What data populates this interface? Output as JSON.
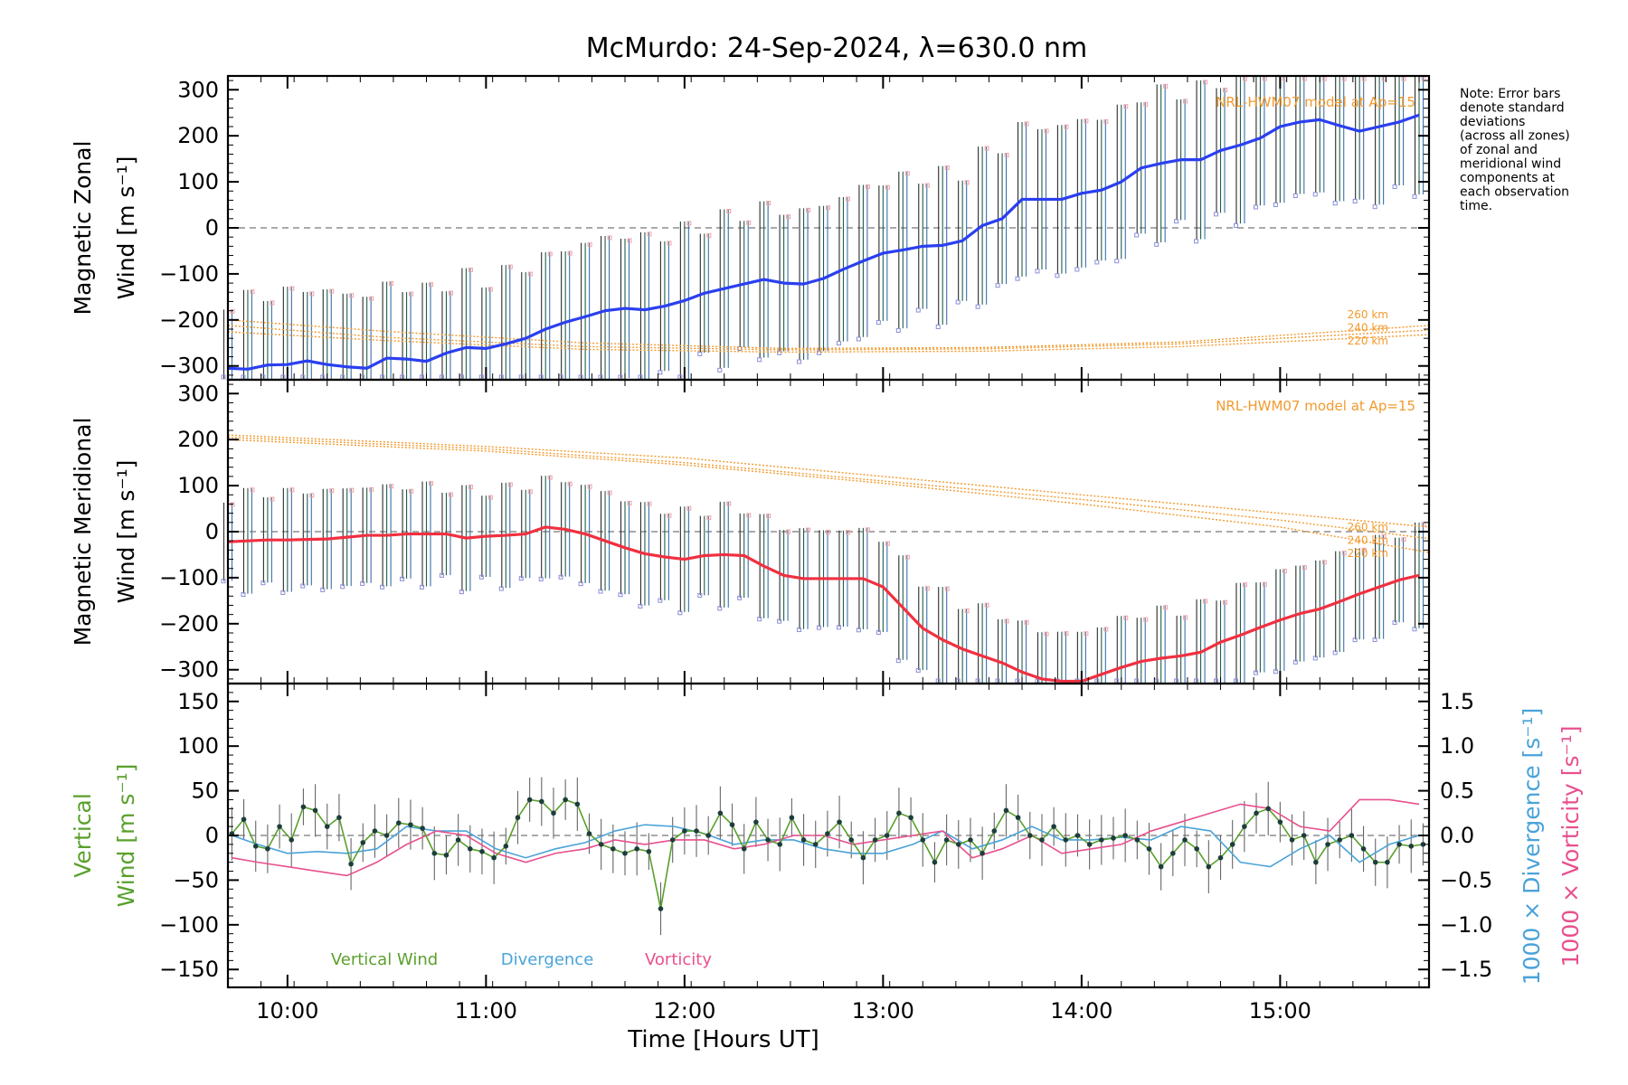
{
  "title": "McMurdo: 24-Sep-2024, λ=630.0 nm",
  "note": [
    "Note: Error bars",
    "denote standard",
    "deviations",
    "(across all zones)",
    "of zonal and",
    "meridional wind",
    "components at",
    "each observation",
    "time."
  ],
  "colors": {
    "zonal": "#2a3ff0",
    "meridional": "#f03040",
    "vertical": "#5aa02c",
    "divergence": "#4aa3d9",
    "vorticity": "#e8508e",
    "model": "#f29a2e",
    "errorbar": "#333333",
    "zone_blue": "#8a8fd8",
    "zone_pink": "#f4a0a0"
  },
  "x_axis": {
    "label": "Time [Hours UT]",
    "ticks": [
      {
        "v": 10,
        "label": "10:00"
      },
      {
        "v": 11,
        "label": "11:00"
      },
      {
        "v": 12,
        "label": "12:00"
      },
      {
        "v": 13,
        "label": "13:00"
      },
      {
        "v": 14,
        "label": "14:00"
      },
      {
        "v": 15,
        "label": "15:00"
      }
    ]
  },
  "chart_data": [
    {
      "type": "line",
      "panel": "zonal",
      "xlabel": "Time [Hours UT]",
      "ylabel": [
        "Magnetic Zonal",
        "Wind [m s⁻¹]"
      ],
      "xlim": [
        9.7,
        15.75
      ],
      "ylim": [
        -330,
        330
      ],
      "yticks": [
        300,
        200,
        100,
        0,
        -100,
        -200,
        -300
      ],
      "ytick_labels": [
        "300",
        "200",
        "100",
        "0",
        "−100",
        "−200",
        "−300"
      ],
      "zero_line": true,
      "model_label": "NRL-HWM07 model at Ap=15",
      "model_alt_labels": [
        "260 km",
        "240 km",
        "220 km"
      ],
      "wind": {
        "x": [
          9.7,
          9.8,
          9.9,
          10.0,
          10.1,
          10.2,
          10.3,
          10.4,
          10.5,
          10.6,
          10.7,
          10.8,
          10.9,
          11.0,
          11.1,
          11.2,
          11.3,
          11.4,
          11.5,
          11.6,
          11.7,
          11.8,
          11.9,
          12.0,
          12.1,
          12.2,
          12.3,
          12.4,
          12.5,
          12.6,
          12.7,
          12.8,
          12.9,
          13.0,
          13.1,
          13.2,
          13.3,
          13.4,
          13.5,
          13.6,
          13.7,
          13.8,
          13.9,
          14.0,
          14.1,
          14.2,
          14.3,
          14.4,
          14.5,
          14.6,
          14.7,
          14.8,
          14.9,
          15.0,
          15.1,
          15.2,
          15.3,
          15.4,
          15.5,
          15.6,
          15.7
        ],
        "y": [
          -305,
          -307,
          -298,
          -297,
          -289,
          -297,
          -302,
          -305,
          -283,
          -285,
          -290,
          -272,
          -260,
          -262,
          -252,
          -240,
          -220,
          -205,
          -193,
          -180,
          -175,
          -178,
          -170,
          -158,
          -142,
          -132,
          -122,
          -112,
          -120,
          -122,
          -110,
          -90,
          -72,
          -55,
          -48,
          -40,
          -38,
          -28,
          5,
          20,
          62,
          62,
          62,
          75,
          82,
          100,
          130,
          140,
          148,
          148,
          168,
          180,
          195,
          220,
          230,
          235,
          222,
          210,
          220,
          230,
          245
        ]
      },
      "models": [
        {
          "name": "260 km",
          "x": [
            9.7,
            10.5,
            11.5,
            12.5,
            13.5,
            14.5,
            15.75
          ],
          "y": [
            -200,
            -225,
            -250,
            -262,
            -260,
            -248,
            -212
          ]
        },
        {
          "name": "240 km",
          "x": [
            9.7,
            10.5,
            11.5,
            12.5,
            13.5,
            14.5,
            15.75
          ],
          "y": [
            -212,
            -238,
            -258,
            -265,
            -263,
            -252,
            -222
          ]
        },
        {
          "name": "220 km",
          "x": [
            9.7,
            10.5,
            11.5,
            12.5,
            13.5,
            14.5,
            15.75
          ],
          "y": [
            -226,
            -245,
            -264,
            -270,
            -268,
            -258,
            -232
          ]
        }
      ],
      "errorbar_sd": 150
    },
    {
      "type": "line",
      "panel": "meridional",
      "xlabel": "Time [Hours UT]",
      "ylabel": [
        "Magnetic Meridional",
        "Wind [m s⁻¹]"
      ],
      "xlim": [
        9.7,
        15.75
      ],
      "ylim": [
        -330,
        330
      ],
      "yticks": [
        300,
        200,
        100,
        0,
        -100,
        -200,
        -300
      ],
      "ytick_labels": [
        "300",
        "200",
        "100",
        "0",
        "−100",
        "−200",
        "−300"
      ],
      "zero_line": true,
      "model_label": "NRL-HWM07 model at Ap=15",
      "model_alt_labels": [
        "260 km",
        "240 km",
        "220 km"
      ],
      "wind": {
        "x": [
          9.7,
          9.8,
          9.9,
          10.0,
          10.1,
          10.2,
          10.3,
          10.4,
          10.5,
          10.6,
          10.7,
          10.8,
          10.9,
          11.0,
          11.1,
          11.2,
          11.3,
          11.4,
          11.5,
          11.6,
          11.7,
          11.8,
          11.9,
          12.0,
          12.1,
          12.2,
          12.3,
          12.4,
          12.5,
          12.6,
          12.7,
          12.8,
          12.9,
          13.0,
          13.1,
          13.2,
          13.3,
          13.4,
          13.5,
          13.6,
          13.7,
          13.8,
          13.9,
          14.0,
          14.1,
          14.2,
          14.3,
          14.4,
          14.5,
          14.6,
          14.7,
          14.8,
          14.9,
          15.0,
          15.1,
          15.2,
          15.3,
          15.4,
          15.5,
          15.6,
          15.7
        ],
        "y": [
          -22,
          -20,
          -18,
          -18,
          -17,
          -16,
          -12,
          -8,
          -8,
          -5,
          -5,
          -5,
          -14,
          -10,
          -8,
          -5,
          10,
          5,
          -5,
          -20,
          -35,
          -48,
          -55,
          -60,
          -52,
          -50,
          -52,
          -75,
          -95,
          -102,
          -102,
          -102,
          -102,
          -120,
          -165,
          -210,
          -235,
          -255,
          -270,
          -285,
          -305,
          -320,
          -325,
          -325,
          -310,
          -295,
          -282,
          -275,
          -270,
          -262,
          -240,
          -225,
          -208,
          -192,
          -178,
          -168,
          -152,
          -135,
          -120,
          -105,
          -95
        ]
      },
      "models": [
        {
          "name": "260 km",
          "x": [
            9.7,
            11,
            12,
            13,
            14,
            15,
            15.75
          ],
          "y": [
            210,
            185,
            160,
            120,
            80,
            40,
            10
          ]
        },
        {
          "name": "240 km",
          "x": [
            9.7,
            11,
            12,
            13,
            14,
            15,
            15.75
          ],
          "y": [
            205,
            180,
            150,
            110,
            70,
            25,
            -15
          ]
        },
        {
          "name": "220 km",
          "x": [
            9.7,
            11,
            12,
            13,
            14,
            15,
            15.75
          ],
          "y": [
            200,
            175,
            145,
            105,
            60,
            10,
            -45
          ]
        }
      ],
      "errorbar_sd": 100
    },
    {
      "type": "line",
      "panel": "vertical",
      "xlabel": "Time [Hours UT]",
      "ylabel": [
        "Vertical",
        "Wind [m s⁻¹]"
      ],
      "ylabel_right": [
        "1000 × Divergence [s⁻¹]",
        "1000 × Vorticity [s⁻¹]"
      ],
      "xlim": [
        9.7,
        15.75
      ],
      "ylim": [
        -170,
        170
      ],
      "yticks": [
        150,
        100,
        50,
        0,
        -50,
        -100,
        -150
      ],
      "ytick_labels": [
        "150",
        "100",
        "50",
        "0",
        "−50",
        "−100",
        "−150"
      ],
      "y2lim": [
        -1.7,
        1.7
      ],
      "y2ticks": [
        1.5,
        1.0,
        0.5,
        0.0,
        -0.5,
        -1.0,
        -1.5
      ],
      "y2tick_labels": [
        "1.5",
        "1.0",
        "0.5",
        "0.0",
        "−0.5",
        "−1.0",
        "−1.5"
      ],
      "zero_line": true,
      "legend": [
        "Vertical Wind",
        "Divergence",
        "Vorticity"
      ],
      "legend_position": "bottom-left",
      "series": [
        {
          "name": "Vertical Wind",
          "axis": "left",
          "x": [
            9.72,
            9.78,
            9.84,
            9.9,
            9.96,
            10.02,
            10.08,
            10.14,
            10.2,
            10.26,
            10.32,
            10.38,
            10.44,
            10.5,
            10.56,
            10.62,
            10.68,
            10.74,
            10.8,
            10.86,
            10.92,
            10.98,
            11.04,
            11.1,
            11.16,
            11.22,
            11.28,
            11.34,
            11.4,
            11.46,
            11.52,
            11.58,
            11.64,
            11.7,
            11.76,
            11.82,
            11.88,
            11.94,
            12.0,
            12.06,
            12.12,
            12.18,
            12.24,
            12.3,
            12.36,
            12.42,
            12.48,
            12.54,
            12.6,
            12.66,
            12.72,
            12.78,
            12.84,
            12.9,
            12.96,
            13.02,
            13.08,
            13.14,
            13.2,
            13.26,
            13.32,
            13.38,
            13.44,
            13.5,
            13.56,
            13.62,
            13.68,
            13.74,
            13.8,
            13.86,
            13.92,
            13.98,
            14.04,
            14.1,
            14.16,
            14.22,
            14.28,
            14.34,
            14.4,
            14.46,
            14.52,
            14.58,
            14.64,
            14.7,
            14.76,
            14.82,
            14.88,
            14.94,
            15.0,
            15.06,
            15.12,
            15.18,
            15.24,
            15.3,
            15.36,
            15.42,
            15.48,
            15.54,
            15.6,
            15.66,
            15.72
          ],
          "y": [
            2,
            18,
            -12,
            -15,
            10,
            -5,
            32,
            28,
            10,
            20,
            -32,
            -8,
            5,
            0,
            14,
            12,
            8,
            -20,
            -22,
            -5,
            -15,
            -18,
            -25,
            -12,
            20,
            40,
            38,
            25,
            40,
            35,
            2,
            -10,
            -15,
            -20,
            -15,
            -18,
            -82,
            -5,
            5,
            5,
            0,
            25,
            12,
            -15,
            15,
            -5,
            -10,
            20,
            -5,
            -10,
            2,
            15,
            -5,
            -25,
            -5,
            0,
            25,
            20,
            -5,
            -30,
            -5,
            -10,
            -5,
            -20,
            5,
            28,
            20,
            0,
            -5,
            10,
            -5,
            0,
            -10,
            -5,
            -3,
            0,
            -5,
            -15,
            -35,
            -20,
            -5,
            -15,
            -35,
            -25,
            -10,
            10,
            25,
            30,
            15,
            -5,
            0,
            -30,
            -10,
            -5,
            0,
            -15,
            -30,
            -30,
            -10,
            -12,
            -10
          ],
          "err": 25
        },
        {
          "name": "Divergence",
          "axis": "right",
          "x": [
            9.72,
            9.85,
            10.0,
            10.15,
            10.3,
            10.45,
            10.6,
            10.75,
            10.9,
            11.05,
            11.2,
            11.35,
            11.5,
            11.65,
            11.8,
            11.95,
            12.1,
            12.25,
            12.4,
            12.55,
            12.7,
            12.85,
            13.0,
            13.15,
            13.3,
            13.45,
            13.6,
            13.75,
            13.9,
            14.05,
            14.2,
            14.35,
            14.5,
            14.65,
            14.8,
            14.95,
            15.1,
            15.25,
            15.4,
            15.55,
            15.7
          ],
          "y": [
            0.0,
            -0.1,
            -0.2,
            -0.18,
            -0.2,
            -0.15,
            0.1,
            0.05,
            0.05,
            -0.15,
            -0.25,
            -0.15,
            -0.08,
            0.05,
            0.12,
            0.1,
            0.02,
            -0.1,
            -0.05,
            -0.05,
            -0.15,
            -0.2,
            -0.2,
            -0.1,
            0.05,
            -0.15,
            -0.05,
            0.1,
            -0.05,
            -0.05,
            -0.02,
            -0.05,
            0.1,
            0.05,
            -0.3,
            -0.35,
            -0.15,
            0.0,
            -0.3,
            -0.1,
            0.0
          ]
        },
        {
          "name": "Vorticity",
          "axis": "right",
          "x": [
            9.72,
            9.85,
            10.0,
            10.15,
            10.3,
            10.45,
            10.6,
            10.75,
            10.9,
            11.05,
            11.2,
            11.35,
            11.5,
            11.65,
            11.8,
            11.95,
            12.1,
            12.25,
            12.4,
            12.55,
            12.7,
            12.85,
            13.0,
            13.15,
            13.3,
            13.45,
            13.6,
            13.75,
            13.9,
            14.05,
            14.2,
            14.35,
            14.5,
            14.65,
            14.8,
            14.95,
            15.1,
            15.25,
            15.4,
            15.55,
            15.7
          ],
          "y": [
            -0.25,
            -0.3,
            -0.35,
            -0.4,
            -0.45,
            -0.3,
            -0.1,
            0.05,
            0.0,
            -0.2,
            -0.3,
            -0.2,
            -0.15,
            -0.05,
            -0.1,
            -0.05,
            -0.05,
            -0.15,
            -0.1,
            0.0,
            0.0,
            -0.1,
            -0.05,
            0.0,
            0.05,
            -0.25,
            -0.15,
            0.0,
            -0.2,
            -0.15,
            -0.1,
            0.05,
            0.15,
            0.25,
            0.35,
            0.3,
            0.1,
            0.05,
            0.4,
            0.4,
            0.35
          ]
        }
      ]
    }
  ]
}
